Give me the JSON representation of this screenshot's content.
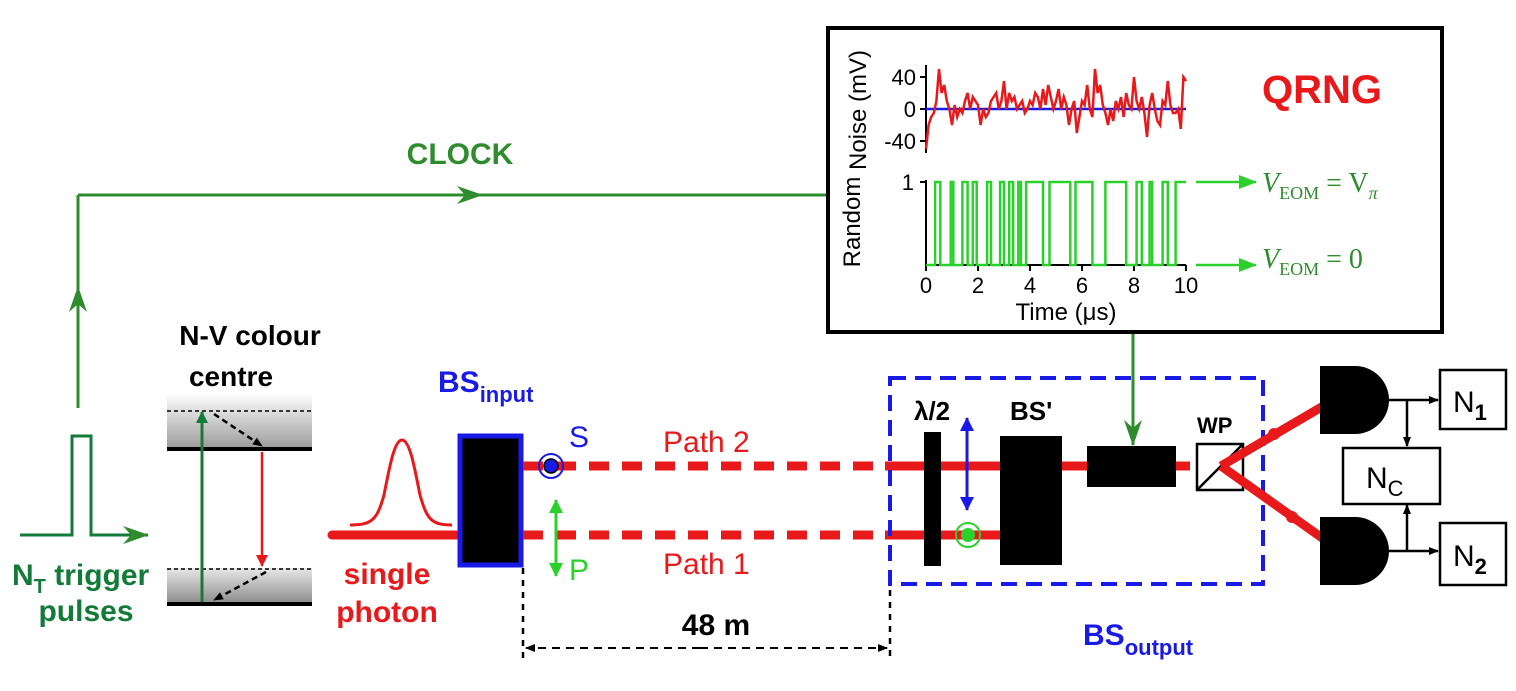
{
  "colors": {
    "green": "#2e8b2e",
    "dark_green": "#137a3a",
    "bright_green": "#2bd12b",
    "red": "#e8191b",
    "blue": "#1a1ae6",
    "black": "#000000"
  },
  "labels": {
    "clock": "CLOCK",
    "qrng": "QRNG",
    "nv_line1": "N-V colour",
    "nv_line2": "centre",
    "trigger_n": "N",
    "trigger_sub": "T",
    "trigger_rest": " trigger",
    "trigger_line2": "pulses",
    "single": "single",
    "photon": "photon",
    "bs_input_main": "BS",
    "bs_input_sub": "input",
    "s_label": "S",
    "p_label": "P",
    "path2": "Path 2",
    "path1": "Path 1",
    "distance": "48 m",
    "half_wave": "λ/2",
    "bs_prime": "BS'",
    "wp": "WP",
    "bs_output_main": "BS",
    "bs_output_sub": "output",
    "n1_main": "N",
    "n1_sub": "1",
    "n2_main": "N",
    "n2_sub": "2",
    "nc_main": "N",
    "nc_sub": "C",
    "v_pi_v": "V",
    "v_pi_sub": "EOM",
    "v_pi_eq": " = V",
    "v_pi_pisub": "π",
    "v_0_v": "V",
    "v_0_sub": "EOM",
    "v_0_eq": " = 0"
  },
  "inset": {
    "noise_ylabel": "Noise (mV)",
    "random_ylabel": "Random",
    "xlabel": "Time (μs)",
    "noise_ticks": [
      "40",
      "0",
      "-40"
    ],
    "random_ticks": [
      "1",
      "0"
    ],
    "x_ticks": [
      "0",
      "2",
      "4",
      "6",
      "8",
      "10"
    ]
  },
  "chart_data": [
    {
      "type": "line",
      "ylabel": "Noise (mV)",
      "xlabel": "Time (μs)",
      "xlim": [
        0,
        10
      ],
      "ylim": [
        -55,
        55
      ],
      "series": [
        {
          "color": "#e8191b",
          "x": [
            0,
            0.1,
            0.2,
            0.3,
            0.4,
            0.5,
            0.6,
            0.7,
            0.8,
            0.9,
            1.0,
            1.1,
            1.2,
            1.3,
            1.4,
            1.5,
            1.6,
            1.7,
            1.8,
            1.9,
            2.0,
            2.1,
            2.2,
            2.3,
            2.4,
            2.5,
            2.6,
            2.7,
            2.8,
            2.9,
            3.0,
            3.1,
            3.2,
            3.3,
            3.4,
            3.5,
            3.6,
            3.7,
            3.8,
            3.9,
            4.0,
            4.1,
            4.2,
            4.3,
            4.4,
            4.5,
            4.6,
            4.7,
            4.8,
            4.9,
            5.0,
            5.1,
            5.2,
            5.3,
            5.4,
            5.5,
            5.6,
            5.7,
            5.8,
            5.9,
            6.0,
            6.1,
            6.2,
            6.3,
            6.4,
            6.5,
            6.6,
            6.7,
            6.8,
            6.9,
            7.0,
            7.1,
            7.2,
            7.3,
            7.4,
            7.5,
            7.6,
            7.7,
            7.8,
            7.9,
            8.0,
            8.1,
            8.2,
            8.3,
            8.4,
            8.5,
            8.6,
            8.7,
            8.8,
            8.9,
            9.0,
            9.1,
            9.2,
            9.3,
            9.4,
            9.5,
            9.6,
            9.7,
            9.8,
            9.9,
            10.0
          ],
          "y": [
            -50,
            -20,
            -10,
            -5,
            10,
            50,
            20,
            30,
            10,
            0,
            -20,
            5,
            -10,
            0,
            -5,
            10,
            20,
            0,
            15,
            10,
            5,
            -20,
            0,
            -10,
            -5,
            10,
            15,
            20,
            0,
            10,
            35,
            0,
            20,
            10,
            15,
            0,
            5,
            10,
            -5,
            0,
            10,
            5,
            20,
            15,
            0,
            25,
            5,
            30,
            15,
            0,
            10,
            25,
            0,
            15,
            5,
            -20,
            0,
            10,
            -30,
            -10,
            10,
            5,
            30,
            0,
            -10,
            50,
            20,
            30,
            5,
            -5,
            -20,
            0,
            -15,
            10,
            0,
            15,
            -10,
            20,
            5,
            0,
            40,
            10,
            0,
            15,
            -5,
            -35,
            5,
            20,
            0,
            -15,
            -20,
            10,
            5,
            35,
            5,
            -5,
            -5,
            0,
            -25,
            40,
            35
          ]
        },
        {
          "color": "#1a1ae6",
          "x": [
            0,
            10
          ],
          "y": [
            0,
            0
          ]
        }
      ]
    },
    {
      "type": "line",
      "ylabel": "Random",
      "xlabel": "Time (μs)",
      "xlim": [
        0,
        10
      ],
      "ylim": [
        0,
        1
      ],
      "series": [
        {
          "color": "#2bd12b",
          "step": true,
          "x": [
            0,
            0.35,
            0.55,
            0.95,
            1.05,
            1.4,
            1.6,
            1.8,
            1.95,
            2.35,
            2.5,
            2.85,
            3.0,
            3.2,
            3.35,
            3.55,
            3.65,
            3.85,
            4.5,
            4.75,
            5.55,
            5.75,
            6.4,
            6.9,
            7.7,
            8.1,
            8.3,
            8.6,
            8.7,
            9.1,
            9.3,
            9.6,
            10.0
          ],
          "y": [
            0,
            1,
            0,
            1,
            0,
            1,
            0,
            1,
            0,
            1,
            0,
            1,
            0,
            1,
            0,
            1,
            0,
            1,
            0,
            1,
            0,
            1,
            0,
            1,
            0,
            1,
            0,
            1,
            0,
            1,
            0,
            1,
            1
          ]
        }
      ]
    }
  ]
}
